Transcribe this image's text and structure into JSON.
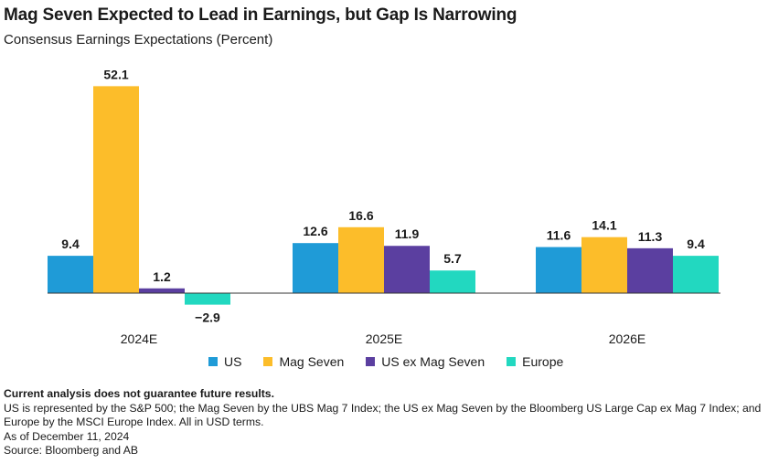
{
  "header": {
    "title": "Mag Seven Expected to Lead in Earnings, but Gap Is Narrowing",
    "subtitle": "Consensus Earnings Expectations (Percent)"
  },
  "chart_data": {
    "type": "bar",
    "categories": [
      "2024E",
      "2025E",
      "2026E"
    ],
    "series": [
      {
        "name": "US",
        "values": [
          9.4,
          12.6,
          11.6
        ],
        "color": "#1f9bd7"
      },
      {
        "name": "Mag Seven",
        "values": [
          52.1,
          16.6,
          14.1
        ],
        "color": "#fcbd2a"
      },
      {
        "name": "US ex Mag Seven",
        "values": [
          1.2,
          11.9,
          11.3
        ],
        "color": "#5b3fa0"
      },
      {
        "name": "Europe",
        "values": [
          -2.9,
          5.7,
          9.4
        ],
        "color": "#22d8c0"
      }
    ],
    "value_labels": [
      [
        "9.4",
        "12.6",
        "11.6"
      ],
      [
        "52.1",
        "16.6",
        "14.1"
      ],
      [
        "1.2",
        "11.9",
        "11.3"
      ],
      [
        "−2.9",
        "5.7",
        "9.4"
      ]
    ],
    "ylim": [
      -5,
      55
    ],
    "grid": false,
    "legend_position": "bottom"
  },
  "legend": {
    "items": [
      {
        "label": "US",
        "color": "#1f9bd7"
      },
      {
        "label": "Mag Seven",
        "color": "#fcbd2a"
      },
      {
        "label": "US ex Mag Seven",
        "color": "#5b3fa0"
      },
      {
        "label": "Europe",
        "color": "#22d8c0"
      }
    ]
  },
  "footer": {
    "note": "Current analysis does not guarantee future results.",
    "description": "US is represented by the S&P 500; the Mag Seven by the UBS Mag 7 Index; the US ex Mag Seven by the Bloomberg US Large Cap ex Mag 7 Index; and Europe by the MSCI Europe Index. All in USD terms.",
    "as_of": "As of December 11,  2024",
    "source": "Source: Bloomberg and AB"
  }
}
